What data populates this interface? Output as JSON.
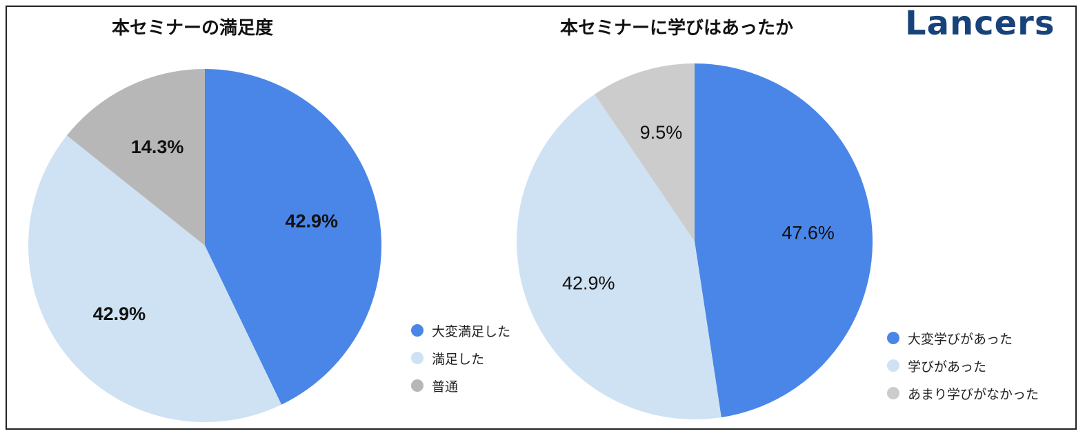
{
  "brand": {
    "logo_text": "Lancers",
    "logo_color": "#17437a",
    "logo_accent_color": "#1e88d6"
  },
  "chart_data": [
    {
      "type": "pie",
      "title": "本セミナーの満足度",
      "legend_position": "right-bottom",
      "label_bold": true,
      "slices": [
        {
          "label": "大変満足した",
          "value": 42.9,
          "display": "42.9%",
          "color": "#4a86e8"
        },
        {
          "label": "満足した",
          "value": 42.9,
          "display": "42.9%",
          "color": "#cfe2f3"
        },
        {
          "label": "普通",
          "value": 14.3,
          "display": "14.3%",
          "color": "#b7b7b7"
        }
      ]
    },
    {
      "type": "pie",
      "title": "本セミナーに学びはあったか",
      "legend_position": "right-bottom",
      "label_bold": false,
      "slices": [
        {
          "label": "大変学びがあった",
          "value": 47.6,
          "display": "47.6%",
          "color": "#4a86e8"
        },
        {
          "label": "学びがあった",
          "value": 42.9,
          "display": "42.9%",
          "color": "#cfe2f3"
        },
        {
          "label": "あまり学びがなかった",
          "value": 9.5,
          "display": "9.5%",
          "color": "#cccccc"
        }
      ]
    }
  ]
}
